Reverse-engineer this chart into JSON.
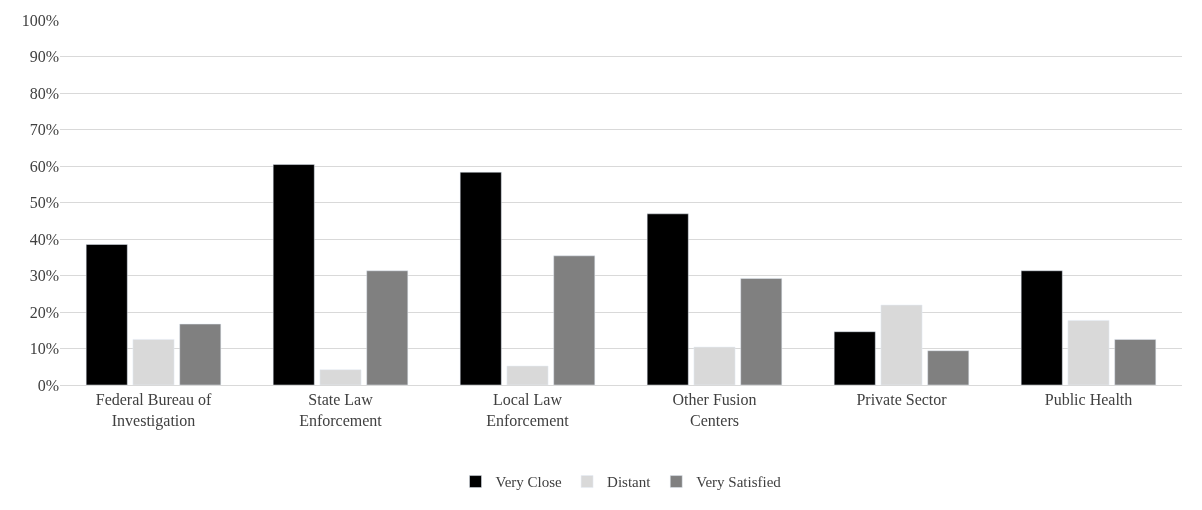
{
  "chart_data": {
    "type": "bar",
    "categories": [
      "Federal Bureau of Investigation",
      "State Law Enforcement",
      "Local Law Enforcement",
      "Other Fusion Centers",
      "Private Sector",
      "Public Health"
    ],
    "series": [
      {
        "name": "Very Close",
        "color": "#000000",
        "values": [
          38.5,
          60.4,
          58.3,
          46.9,
          14.6,
          31.3
        ]
      },
      {
        "name": "Distant",
        "color": "#d9d9d9",
        "values": [
          12.5,
          4.2,
          5.2,
          10.4,
          21.9,
          17.7
        ]
      },
      {
        "name": "Very Satisfied",
        "color": "#808080",
        "values": [
          16.7,
          31.3,
          35.4,
          29.2,
          9.4,
          12.5
        ]
      }
    ],
    "ylim": [
      0,
      100
    ],
    "yticks": [
      {
        "value": 0,
        "label": "0%"
      },
      {
        "value": 10,
        "label": "10%"
      },
      {
        "value": 20,
        "label": "20%"
      },
      {
        "value": 30,
        "label": "30%"
      },
      {
        "value": 40,
        "label": "40%"
      },
      {
        "value": 50,
        "label": "50%"
      },
      {
        "value": 60,
        "label": "60%"
      },
      {
        "value": 70,
        "label": "70%"
      },
      {
        "value": 80,
        "label": "80%"
      },
      {
        "value": 90,
        "label": "90%"
      },
      {
        "value": 100,
        "label": "100%"
      }
    ],
    "grid": "y",
    "legend": "bottom"
  }
}
